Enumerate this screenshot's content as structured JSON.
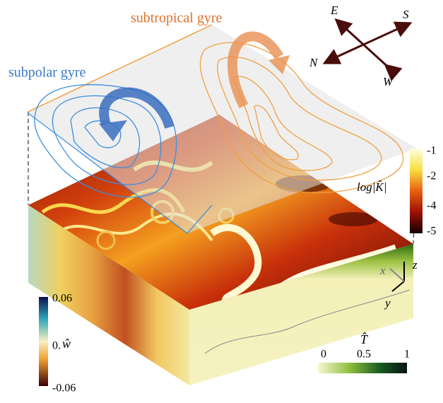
{
  "gyres": {
    "subtropical": "subtropical gyre",
    "subpolar": "subpolar gyre"
  },
  "compass": [
    "E",
    "S",
    "N",
    "W"
  ],
  "colorbars": [
    {
      "label": "log|K̂|",
      "ticks": [
        "-1",
        "-2",
        "-4",
        "-5"
      ]
    },
    {
      "label": "ŵ",
      "ticks": [
        "0.06",
        "0.",
        "-0.06"
      ]
    },
    {
      "label": "T̂",
      "ticks": [
        "0",
        "0.5",
        "1"
      ]
    }
  ],
  "axes": [
    "x",
    "y",
    "z"
  ]
}
